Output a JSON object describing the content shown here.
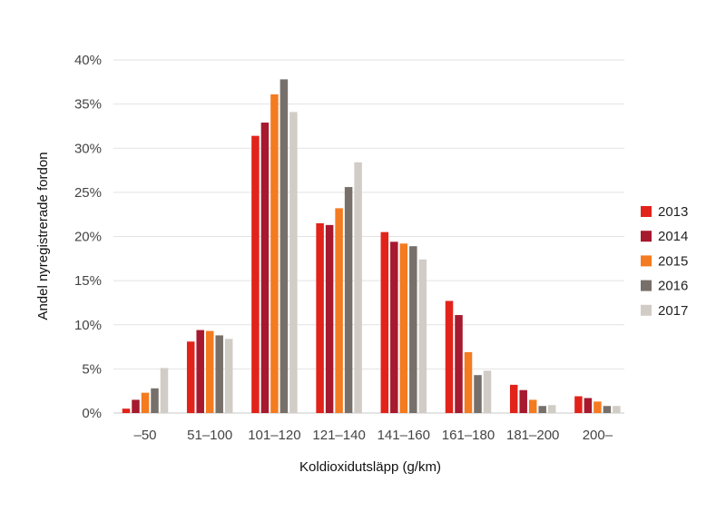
{
  "chart_data": {
    "type": "bar",
    "xlabel": "Koldioxidutsläpp (g/km)",
    "ylabel": "Andel nyregistrerade fordon",
    "categories": [
      "–50",
      "51–100",
      "101–120",
      "121–140",
      "141–160",
      "161–180",
      "181–200",
      "200–"
    ],
    "yticks": [
      "0%",
      "5%",
      "10%",
      "15%",
      "20%",
      "25%",
      "30%",
      "35%",
      "40%"
    ],
    "ylim": [
      0,
      40
    ],
    "grid": "horizontal",
    "legend_position": "right",
    "series": [
      {
        "name": "2013",
        "color": "#e2231a",
        "values": [
          0.5,
          8.1,
          31.4,
          21.5,
          20.5,
          12.7,
          3.2,
          1.9
        ]
      },
      {
        "name": "2014",
        "color": "#a6192e",
        "values": [
          1.5,
          9.4,
          32.9,
          21.3,
          19.4,
          11.1,
          2.6,
          1.7
        ]
      },
      {
        "name": "2015",
        "color": "#f47b20",
        "values": [
          2.3,
          9.3,
          36.1,
          23.2,
          19.2,
          6.9,
          1.5,
          1.3
        ]
      },
      {
        "name": "2016",
        "color": "#77706a",
        "values": [
          2.8,
          8.8,
          37.8,
          25.6,
          18.9,
          4.3,
          0.8,
          0.8
        ]
      },
      {
        "name": "2017",
        "color": "#d2ccc6",
        "values": [
          5.1,
          8.4,
          34.1,
          28.4,
          17.4,
          4.8,
          0.9,
          0.8
        ]
      }
    ]
  }
}
